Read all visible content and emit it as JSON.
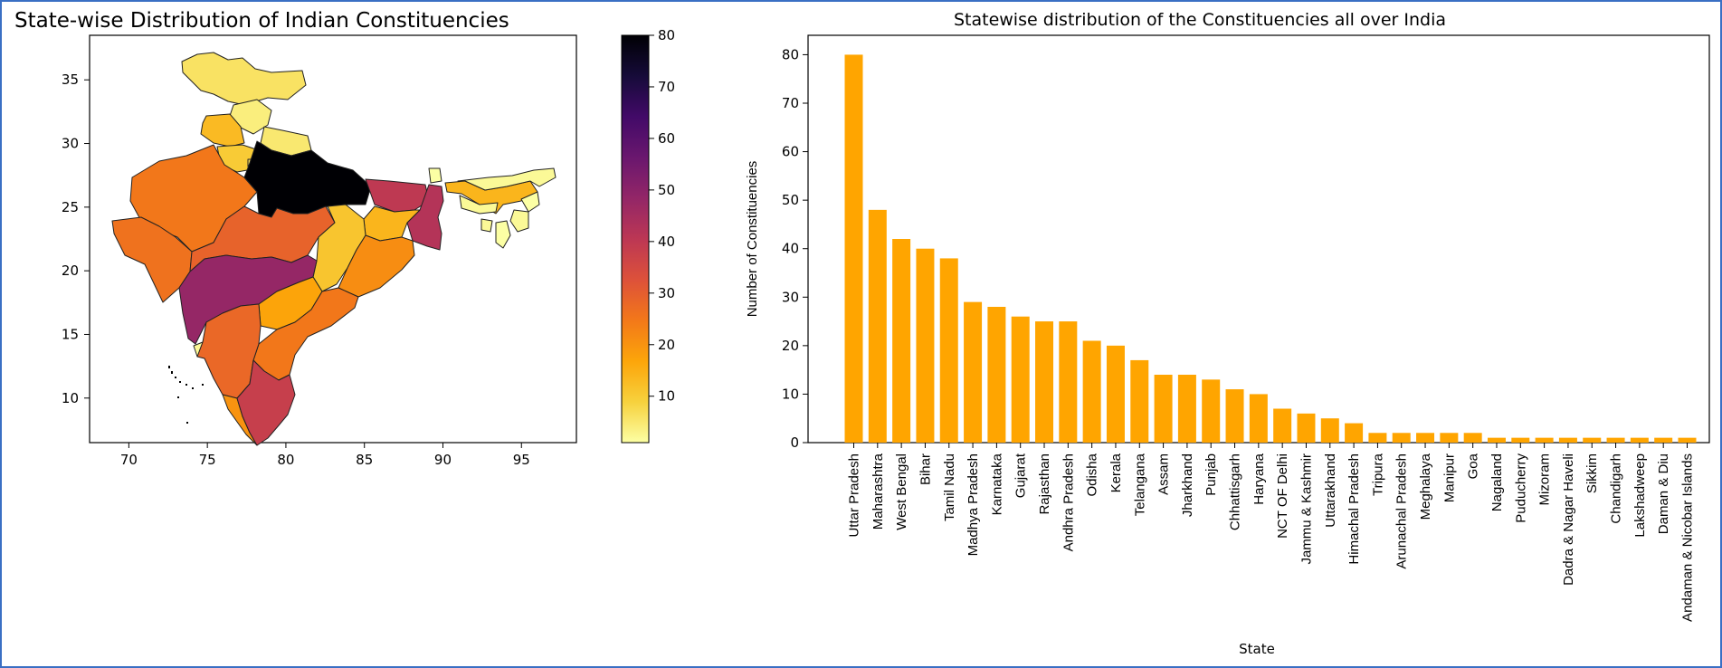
{
  "colors": {
    "frame_border": "#3a6fc4",
    "bar": "#ffa500",
    "inferno_scale": [
      "#fcffa4",
      "#f7d13d",
      "#fca50a",
      "#f37819",
      "#dd513a",
      "#bc3754",
      "#932667",
      "#6a176e",
      "#420a68",
      "#160b39",
      "#000004"
    ]
  },
  "chart_data": [
    {
      "type": "choropleth",
      "title": "State-wise Distribution of Indian Constituencies",
      "colormap": "inferno_r",
      "x_ticks": [
        "70",
        "75",
        "80",
        "85",
        "90",
        "95"
      ],
      "y_ticks": [
        "10",
        "15",
        "20",
        "25",
        "30",
        "35"
      ],
      "xlim": [
        67.5,
        98.5
      ],
      "ylim": [
        6.5,
        38.5
      ],
      "colorbar": {
        "range": [
          1,
          80
        ],
        "ticks": [
          "10",
          "20",
          "30",
          "40",
          "50",
          "60",
          "70",
          "80"
        ],
        "tick_values": [
          10,
          20,
          30,
          40,
          50,
          60,
          70,
          80
        ]
      },
      "regions": [
        {
          "name": "Uttar Pradesh",
          "value": 80
        },
        {
          "name": "Maharashtra",
          "value": 48
        },
        {
          "name": "West Bengal",
          "value": 42
        },
        {
          "name": "Bihar",
          "value": 40
        },
        {
          "name": "Tamil Nadu",
          "value": 38
        },
        {
          "name": "Madhya Pradesh",
          "value": 29
        },
        {
          "name": "Karnataka",
          "value": 28
        },
        {
          "name": "Gujarat",
          "value": 26
        },
        {
          "name": "Rajasthan",
          "value": 25
        },
        {
          "name": "Andhra Pradesh",
          "value": 25
        },
        {
          "name": "Odisha",
          "value": 21
        },
        {
          "name": "Kerala",
          "value": 20
        },
        {
          "name": "Telangana",
          "value": 17
        },
        {
          "name": "Assam",
          "value": 14
        },
        {
          "name": "Jharkhand",
          "value": 14
        },
        {
          "name": "Punjab",
          "value": 13
        },
        {
          "name": "Chhattisgarh",
          "value": 11
        },
        {
          "name": "Haryana",
          "value": 10
        },
        {
          "name": "NCT OF Delhi",
          "value": 7
        },
        {
          "name": "Jammu & Kashmir",
          "value": 6
        },
        {
          "name": "Uttarakhand",
          "value": 5
        },
        {
          "name": "Himachal Pradesh",
          "value": 4
        },
        {
          "name": "Tripura",
          "value": 2
        },
        {
          "name": "Arunachal Pradesh",
          "value": 2
        },
        {
          "name": "Meghalaya",
          "value": 2
        },
        {
          "name": "Manipur",
          "value": 2
        },
        {
          "name": "Goa",
          "value": 2
        },
        {
          "name": "Nagaland",
          "value": 1
        },
        {
          "name": "Mizoram",
          "value": 1
        },
        {
          "name": "Sikkim",
          "value": 1
        }
      ]
    },
    {
      "type": "bar",
      "title": "Statewise distribution of the Constituencies all over India",
      "xlabel": "State",
      "ylabel": "Number of Constituencies",
      "ylim": [
        0,
        84
      ],
      "y_ticks": [
        0,
        10,
        20,
        30,
        40,
        50,
        60,
        70,
        80
      ],
      "categories": [
        "Uttar Pradesh",
        "Maharashtra",
        "West Bengal",
        "Bihar",
        "Tamil Nadu",
        "Madhya Pradesh",
        "Karnataka",
        "Gujarat",
        "Rajasthan",
        "Andhra Pradesh",
        "Odisha",
        "Kerala",
        "Telangana",
        "Assam",
        "Jharkhand",
        "Punjab",
        "Chhattisgarh",
        "Haryana",
        "NCT OF Delhi",
        "Jammu & Kashmir",
        "Uttarakhand",
        "Himachal Pradesh",
        "Tripura",
        "Arunachal Pradesh",
        "Meghalaya",
        "Manipur",
        "Goa",
        "Nagaland",
        "Puducherry",
        "Mizoram",
        "Dadra & Nagar Haveli",
        "Sikkim",
        "Chandigarh",
        "Lakshadweep",
        "Daman & Diu",
        "Andaman & Nicobar Islands"
      ],
      "values": [
        80,
        48,
        42,
        40,
        38,
        29,
        28,
        26,
        25,
        25,
        21,
        20,
        17,
        14,
        14,
        13,
        11,
        10,
        7,
        6,
        5,
        4,
        2,
        2,
        2,
        2,
        2,
        1,
        1,
        1,
        1,
        1,
        1,
        1,
        1,
        1
      ]
    }
  ]
}
